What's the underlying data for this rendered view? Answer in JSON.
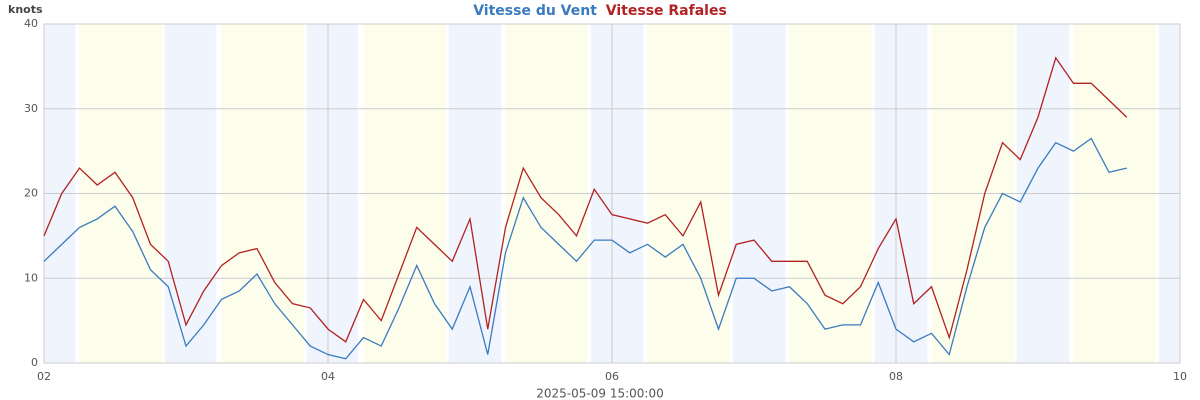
{
  "chart_data": {
    "type": "line",
    "y_label": "knots",
    "x_label": "2025-05-09 15:00:00",
    "xlim": [
      2,
      10
    ],
    "xticks": [
      {
        "value": 2,
        "label": "02"
      },
      {
        "value": 4,
        "label": "04"
      },
      {
        "value": 6,
        "label": "06"
      },
      {
        "value": 8,
        "label": "08"
      },
      {
        "value": 10,
        "label": "10"
      }
    ],
    "ylim": [
      0,
      40
    ],
    "yticks": [
      0,
      10,
      20,
      30,
      40
    ],
    "grid": true,
    "night_bands": [
      [
        2.0,
        2.22
      ],
      [
        2.85,
        3.21
      ],
      [
        3.85,
        4.21
      ],
      [
        4.85,
        5.22
      ],
      [
        5.85,
        6.22
      ],
      [
        6.85,
        7.22
      ],
      [
        7.85,
        8.22
      ],
      [
        8.85,
        9.22
      ],
      [
        9.85,
        10
      ]
    ],
    "day_bands": [
      [
        2.25,
        2.83
      ],
      [
        3.25,
        3.83
      ],
      [
        4.25,
        4.83
      ],
      [
        5.25,
        5.83
      ],
      [
        6.25,
        6.83
      ],
      [
        7.25,
        7.83
      ],
      [
        8.25,
        8.83
      ],
      [
        9.25,
        9.83
      ]
    ],
    "x": [
      2,
      2.125,
      2.25,
      2.375,
      2.5,
      2.625,
      2.75,
      2.875,
      3,
      3.125,
      3.25,
      3.375,
      3.5,
      3.625,
      3.75,
      3.875,
      4,
      4.125,
      4.25,
      4.375,
      4.5,
      4.625,
      4.75,
      4.875,
      5,
      5.125,
      5.25,
      5.375,
      5.5,
      5.625,
      5.75,
      5.875,
      6,
      6.125,
      6.25,
      6.375,
      6.5,
      6.625,
      6.75,
      6.875,
      7,
      7.125,
      7.25,
      7.375,
      7.5,
      7.625,
      7.75,
      7.875,
      8,
      8.125,
      8.25,
      8.375,
      8.5,
      8.625,
      8.75,
      8.875,
      9,
      9.125,
      9.25,
      9.375,
      9.5,
      9.625
    ],
    "series": [
      {
        "name": "Vitesse du Vent",
        "color": "#3a7bbf",
        "values": [
          12,
          14,
          16,
          17,
          18.5,
          15.5,
          11,
          9,
          2,
          4.5,
          7.5,
          8.5,
          10.5,
          7,
          4.5,
          2,
          1,
          0.5,
          3,
          2,
          6.5,
          11.5,
          7,
          4,
          9,
          1,
          13,
          19.5,
          16,
          14,
          12,
          14.5,
          14.5,
          13,
          14,
          12.5,
          14,
          10,
          4,
          10,
          10,
          8.5,
          9,
          7,
          4,
          4.5,
          4.5,
          9.5,
          4,
          2.5,
          3.5,
          1,
          9,
          16,
          20,
          19,
          23,
          26,
          25,
          26.5,
          22.5,
          23
        ]
      },
      {
        "name": "Vitesse Rafales",
        "color": "#b22222",
        "values": [
          15,
          20,
          23,
          21,
          22.5,
          19.5,
          14,
          12,
          4.5,
          8.5,
          11.5,
          13,
          13.5,
          9.5,
          7,
          6.5,
          4,
          2.5,
          7.5,
          5,
          10.5,
          16,
          14,
          12,
          17,
          4,
          16,
          23,
          19.5,
          17.5,
          15,
          20.5,
          17.5,
          17,
          16.5,
          17.5,
          15,
          19,
          8,
          14,
          14.5,
          12,
          12,
          12,
          8,
          7,
          9,
          13.5,
          17,
          7,
          9,
          3,
          11,
          20,
          26,
          24,
          29,
          36,
          33,
          33,
          31,
          29
        ]
      }
    ]
  }
}
